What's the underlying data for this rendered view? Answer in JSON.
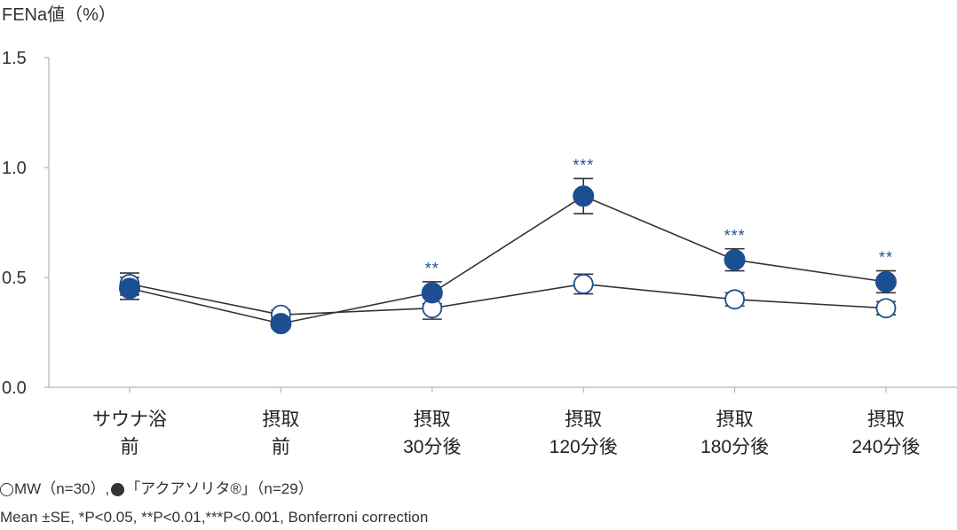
{
  "chart_data": {
    "type": "line",
    "title": "",
    "xlabel": "",
    "ylabel": "FENa値（%）",
    "ylim": [
      0,
      1.5
    ],
    "yticks": [
      0,
      0.5,
      1.0,
      1.5
    ],
    "ytick_labels": [
      "0.0",
      "0.5",
      "1.0",
      "1.5"
    ],
    "grid": false,
    "categories": [
      [
        "サウナ浴",
        "前"
      ],
      [
        "摂取",
        "前"
      ],
      [
        "摂取",
        "30分後"
      ],
      [
        "摂取",
        "120分後"
      ],
      [
        "摂取",
        "180分後"
      ],
      [
        "摂取",
        "240分後"
      ]
    ],
    "series": [
      {
        "name": "MW（n=30）",
        "marker": "open",
        "values": [
          0.47,
          0.33,
          0.36,
          0.47,
          0.4,
          0.36
        ],
        "se": [
          0.05,
          0.02,
          0.05,
          0.045,
          0.03,
          0.03
        ],
        "significance": [
          "",
          "",
          "",
          "",
          "",
          ""
        ]
      },
      {
        "name": "「アクアソリタ®」（n=29）",
        "marker": "filled",
        "values": [
          0.45,
          0.29,
          0.43,
          0.87,
          0.58,
          0.48
        ],
        "se": [
          0.05,
          0.02,
          0.05,
          0.08,
          0.05,
          0.05
        ],
        "significance": [
          "",
          "",
          "**",
          "***",
          "***",
          "**"
        ]
      }
    ],
    "legend": {
      "placement": "bottom-left",
      "separator": ","
    },
    "note": "Mean ±SE, *P<0.05, **P<0.01,***P<0.001, Bonferroni correction",
    "colors": {
      "accent": "#1c4f91",
      "line": "#333333",
      "errorbar": "#333333",
      "axis": "#b5b5b5",
      "text": "#333333"
    }
  }
}
